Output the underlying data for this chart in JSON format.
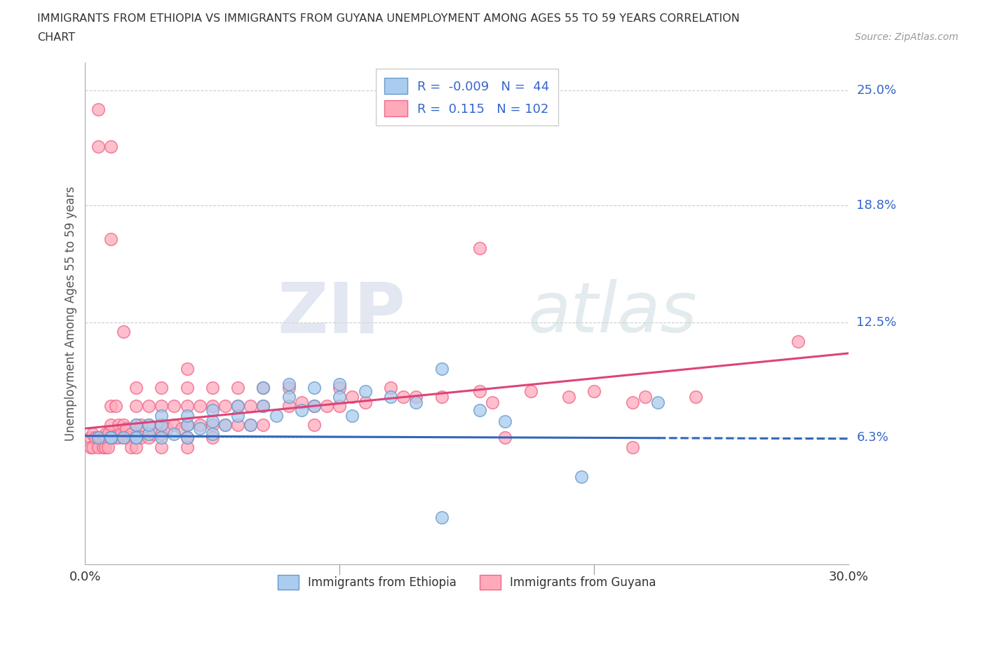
{
  "title_line1": "IMMIGRANTS FROM ETHIOPIA VS IMMIGRANTS FROM GUYANA UNEMPLOYMENT AMONG AGES 55 TO 59 YEARS CORRELATION",
  "title_line2": "CHART",
  "source_text": "Source: ZipAtlas.com",
  "ylabel": "Unemployment Among Ages 55 to 59 years",
  "xlim": [
    0.0,
    0.3
  ],
  "ylim": [
    -0.005,
    0.265
  ],
  "xtick_positions": [
    0.0,
    0.1,
    0.2,
    0.3
  ],
  "xtick_labels": [
    "0.0%",
    "",
    "",
    "30.0%"
  ],
  "ytick_values": [
    0.063,
    0.125,
    0.188,
    0.25
  ],
  "ytick_labels": [
    "6.3%",
    "12.5%",
    "18.8%",
    "25.0%"
  ],
  "ethiopia_face_color": "#aaccee",
  "ethiopia_edge_color": "#6699cc",
  "ethiopia_line_color": "#3366bb",
  "guyana_face_color": "#ffaabb",
  "guyana_edge_color": "#ee6688",
  "guyana_line_color": "#dd4477",
  "ethiopia_R": -0.009,
  "ethiopia_N": 44,
  "guyana_R": 0.115,
  "guyana_N": 102,
  "legend_label_ethiopia": "Immigrants from Ethiopia",
  "legend_label_guyana": "Immigrants from Guyana",
  "watermark_zip": "ZIP",
  "watermark_atlas": "atlas",
  "ethiopia_x": [
    0.005,
    0.01,
    0.01,
    0.015,
    0.02,
    0.02,
    0.02,
    0.025,
    0.025,
    0.03,
    0.03,
    0.03,
    0.035,
    0.04,
    0.04,
    0.04,
    0.045,
    0.05,
    0.05,
    0.05,
    0.055,
    0.06,
    0.06,
    0.065,
    0.07,
    0.07,
    0.075,
    0.08,
    0.08,
    0.085,
    0.09,
    0.09,
    0.1,
    0.1,
    0.105,
    0.11,
    0.12,
    0.13,
    0.14,
    0.155,
    0.165,
    0.195,
    0.225,
    0.14
  ],
  "ethiopia_y": [
    0.063,
    0.063,
    0.063,
    0.063,
    0.063,
    0.07,
    0.063,
    0.065,
    0.07,
    0.063,
    0.07,
    0.075,
    0.065,
    0.063,
    0.07,
    0.075,
    0.068,
    0.072,
    0.078,
    0.065,
    0.07,
    0.075,
    0.08,
    0.07,
    0.08,
    0.09,
    0.075,
    0.085,
    0.092,
    0.078,
    0.08,
    0.09,
    0.085,
    0.092,
    0.075,
    0.088,
    0.085,
    0.082,
    0.02,
    0.078,
    0.072,
    0.042,
    0.082,
    0.1
  ],
  "guyana_x": [
    0.002,
    0.002,
    0.003,
    0.003,
    0.004,
    0.005,
    0.005,
    0.005,
    0.005,
    0.006,
    0.007,
    0.007,
    0.008,
    0.008,
    0.008,
    0.009,
    0.009,
    0.01,
    0.01,
    0.01,
    0.01,
    0.01,
    0.012,
    0.012,
    0.013,
    0.013,
    0.014,
    0.015,
    0.015,
    0.015,
    0.016,
    0.017,
    0.018,
    0.018,
    0.02,
    0.02,
    0.02,
    0.02,
    0.02,
    0.022,
    0.022,
    0.025,
    0.025,
    0.025,
    0.027,
    0.03,
    0.03,
    0.03,
    0.03,
    0.03,
    0.032,
    0.035,
    0.035,
    0.038,
    0.04,
    0.04,
    0.04,
    0.04,
    0.04,
    0.04,
    0.045,
    0.045,
    0.05,
    0.05,
    0.05,
    0.05,
    0.055,
    0.055,
    0.06,
    0.06,
    0.06,
    0.065,
    0.065,
    0.07,
    0.07,
    0.07,
    0.08,
    0.08,
    0.085,
    0.09,
    0.09,
    0.095,
    0.1,
    0.1,
    0.105,
    0.11,
    0.12,
    0.125,
    0.13,
    0.14,
    0.155,
    0.16,
    0.175,
    0.19,
    0.2,
    0.215,
    0.22,
    0.24,
    0.155,
    0.165,
    0.215,
    0.28
  ],
  "guyana_y": [
    0.063,
    0.058,
    0.065,
    0.058,
    0.063,
    0.24,
    0.22,
    0.063,
    0.058,
    0.063,
    0.063,
    0.058,
    0.065,
    0.058,
    0.063,
    0.065,
    0.058,
    0.22,
    0.17,
    0.08,
    0.07,
    0.063,
    0.08,
    0.063,
    0.07,
    0.063,
    0.065,
    0.12,
    0.07,
    0.063,
    0.068,
    0.063,
    0.065,
    0.058,
    0.09,
    0.08,
    0.07,
    0.063,
    0.058,
    0.07,
    0.063,
    0.08,
    0.07,
    0.063,
    0.065,
    0.09,
    0.08,
    0.07,
    0.065,
    0.058,
    0.068,
    0.08,
    0.07,
    0.068,
    0.1,
    0.09,
    0.08,
    0.07,
    0.063,
    0.058,
    0.08,
    0.07,
    0.09,
    0.08,
    0.07,
    0.063,
    0.08,
    0.07,
    0.09,
    0.08,
    0.07,
    0.08,
    0.07,
    0.09,
    0.08,
    0.07,
    0.09,
    0.08,
    0.082,
    0.08,
    0.07,
    0.08,
    0.09,
    0.08,
    0.085,
    0.082,
    0.09,
    0.085,
    0.085,
    0.085,
    0.088,
    0.082,
    0.088,
    0.085,
    0.088,
    0.082,
    0.085,
    0.085,
    0.165,
    0.063,
    0.058,
    0.115
  ]
}
